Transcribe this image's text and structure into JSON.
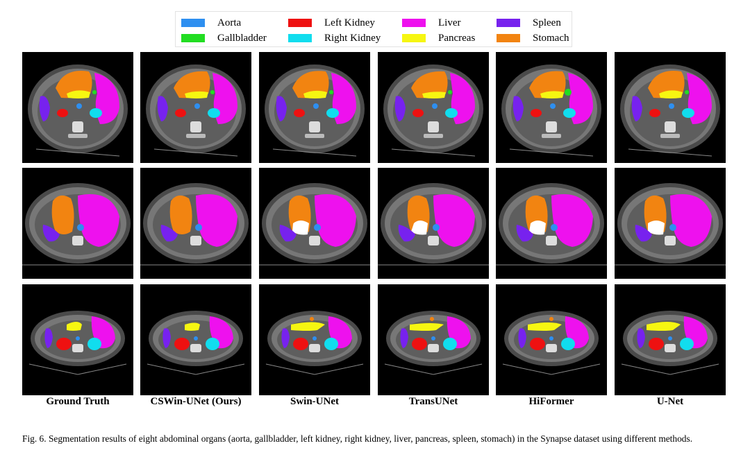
{
  "legend": {
    "items": [
      {
        "label": "Aorta",
        "color": "#2e8ff0"
      },
      {
        "label": "Gallbladder",
        "color": "#22dd22"
      },
      {
        "label": "Left Kidney",
        "color": "#ee1111"
      },
      {
        "label": "Right Kidney",
        "color": "#11ddee"
      },
      {
        "label": "Liver",
        "color": "#ee11ee"
      },
      {
        "label": "Pancreas",
        "color": "#f6f611"
      },
      {
        "label": "Spleen",
        "color": "#7722ee"
      },
      {
        "label": "Stomach",
        "color": "#f28411"
      }
    ]
  },
  "columns": [
    {
      "label": "Ground Truth"
    },
    {
      "label": "CSWin-UNet (Ours)"
    },
    {
      "label": "Swin-UNet"
    },
    {
      "label": "TransUNet"
    },
    {
      "label": "HiFormer"
    },
    {
      "label": "U-Net"
    }
  ],
  "rows": [
    {
      "slice": "upper-abdomen-slice"
    },
    {
      "slice": "mid-abdomen-slice"
    },
    {
      "slice": "kidney-level-slice"
    }
  ],
  "caption": {
    "text": "Fig. 6.  Segmentation results of eight abdominal organs (aorta, gallbladder, left kidney, right kidney, liver, pancreas, spleen, stomach) in the Synapse dataset using different methods."
  }
}
